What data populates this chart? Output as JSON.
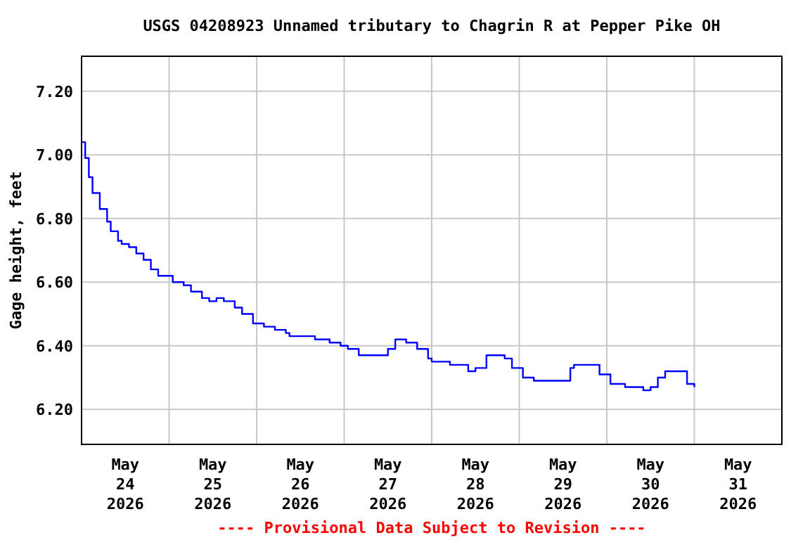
{
  "chart_data": {
    "type": "step",
    "title": "USGS 04208923 Unnamed tributary to Chagrin R at Pepper Pike OH",
    "ylabel": "Gage height, feet",
    "annotations": [
      "---- Provisional Data Subject to Revision ----"
    ],
    "x": [
      "2026-05-24T00:00",
      "2026-05-24T01:00",
      "2026-05-24T02:00",
      "2026-05-24T03:00",
      "2026-05-24T05:00",
      "2026-05-24T07:00",
      "2026-05-24T08:00",
      "2026-05-24T10:00",
      "2026-05-24T11:00",
      "2026-05-24T13:00",
      "2026-05-24T15:00",
      "2026-05-24T17:00",
      "2026-05-24T19:00",
      "2026-05-24T21:00",
      "2026-05-25T01:00",
      "2026-05-25T04:00",
      "2026-05-25T06:00",
      "2026-05-25T09:00",
      "2026-05-25T11:00",
      "2026-05-25T13:00",
      "2026-05-25T15:00",
      "2026-05-25T18:00",
      "2026-05-25T20:00",
      "2026-05-25T23:00",
      "2026-05-26T02:00",
      "2026-05-26T05:00",
      "2026-05-26T08:00",
      "2026-05-26T09:00",
      "2026-05-26T16:00",
      "2026-05-26T20:00",
      "2026-05-26T23:00",
      "2026-05-27T01:00",
      "2026-05-27T04:00",
      "2026-05-27T10:00",
      "2026-05-27T12:00",
      "2026-05-27T14:00",
      "2026-05-27T17:00",
      "2026-05-27T20:00",
      "2026-05-27T23:00",
      "2026-05-28T00:00",
      "2026-05-28T05:00",
      "2026-05-28T10:00",
      "2026-05-28T12:00",
      "2026-05-28T15:00",
      "2026-05-28T20:00",
      "2026-05-28T22:00",
      "2026-05-29T01:00",
      "2026-05-29T04:00",
      "2026-05-29T11:00",
      "2026-05-29T14:00",
      "2026-05-29T15:00",
      "2026-05-29T20:00",
      "2026-05-29T22:00",
      "2026-05-30T01:00",
      "2026-05-30T05:00",
      "2026-05-30T10:00",
      "2026-05-30T12:00",
      "2026-05-30T14:00",
      "2026-05-30T16:00",
      "2026-05-30T20:00",
      "2026-05-30T22:00",
      "2026-05-31T00:00"
    ],
    "series": [
      {
        "color": "#0000ff",
        "values": [
          7.04,
          6.99,
          6.93,
          6.88,
          6.83,
          6.79,
          6.76,
          6.73,
          6.72,
          6.71,
          6.69,
          6.67,
          6.64,
          6.62,
          6.6,
          6.59,
          6.57,
          6.55,
          6.54,
          6.55,
          6.54,
          6.52,
          6.5,
          6.47,
          6.46,
          6.45,
          6.44,
          6.43,
          6.42,
          6.41,
          6.4,
          6.39,
          6.37,
          6.37,
          6.39,
          6.42,
          6.41,
          6.39,
          6.36,
          6.35,
          6.34,
          6.32,
          6.33,
          6.37,
          6.36,
          6.33,
          6.3,
          6.29,
          6.29,
          6.33,
          6.34,
          6.34,
          6.31,
          6.28,
          6.27,
          6.26,
          6.27,
          6.3,
          6.32,
          6.32,
          6.28,
          6.27
        ]
      }
    ],
    "xlim": [
      "2026-05-24T00:00",
      "2026-06-01T00:00"
    ],
    "xticks": [
      {
        "value": "2026-05-24T12:00",
        "label": "May 24 2026"
      },
      {
        "value": "2026-05-25T00:00",
        "label": null
      },
      {
        "value": "2026-05-25T12:00",
        "label": "May 25 2026"
      },
      {
        "value": "2026-05-26T00:00",
        "label": null
      },
      {
        "value": "2026-05-26T12:00",
        "label": "May 26 2026"
      },
      {
        "value": "2026-05-27T00:00",
        "label": null
      },
      {
        "value": "2026-05-27T12:00",
        "label": "May 27 2026"
      },
      {
        "value": "2026-05-28T00:00",
        "label": null
      },
      {
        "value": "2026-05-28T12:00",
        "label": "May 28 2026"
      },
      {
        "value": "2026-05-29T00:00",
        "label": null
      },
      {
        "value": "2026-05-29T12:00",
        "label": "May 29 2026"
      },
      {
        "value": "2026-05-30T00:00",
        "label": null
      },
      {
        "value": "2026-05-30T12:00",
        "label": "May 30 2026"
      },
      {
        "value": "2026-05-31T00:00",
        "label": null
      },
      {
        "value": "2026-05-31T12:00",
        "label": "May 31 2026"
      }
    ],
    "ylim": [
      6.09,
      7.31
    ],
    "yticks": [
      {
        "value": 6.2,
        "label": "6.20"
      },
      {
        "value": 6.4,
        "label": "6.40"
      },
      {
        "value": 6.6,
        "label": "6.60"
      },
      {
        "value": 6.8,
        "label": "6.80"
      },
      {
        "value": 7.0,
        "label": "7.00"
      },
      {
        "value": 7.2,
        "label": "7.20"
      }
    ],
    "grid": true
  }
}
